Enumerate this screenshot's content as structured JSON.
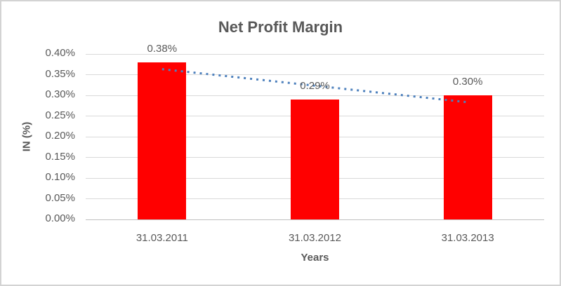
{
  "chart_data": {
    "type": "bar",
    "title": "Net Profit Margin",
    "categories": [
      "31.03.2011",
      "31.03.2012",
      "31.03.2013"
    ],
    "values": [
      0.38,
      0.29,
      0.3
    ],
    "data_labels": [
      "0.38%",
      "0.29%",
      "0.30%"
    ],
    "xlabel": "Years",
    "ylabel": "IN (%)",
    "unit": "%",
    "ylim": [
      0,
      0.4
    ],
    "ytick_step": 0.05,
    "ytick_labels": [
      "0.00%",
      "0.05%",
      "0.10%",
      "0.15%",
      "0.20%",
      "0.25%",
      "0.30%",
      "0.35%",
      "0.40%"
    ],
    "grid": true,
    "legend": false,
    "bar_color": "#FF0000",
    "trendline": {
      "type": "linear",
      "style": "dotted",
      "color": "#4E81BD",
      "fitted_endpoints": [
        0.3633,
        0.2833
      ]
    }
  },
  "colors": {
    "title_text": "#595959",
    "axis_text": "#595959",
    "gridline": "#D9D9D9",
    "axis_line": "#BFBFBF",
    "chart_border": "#D3D3D3",
    "background": "#FFFFFF"
  }
}
